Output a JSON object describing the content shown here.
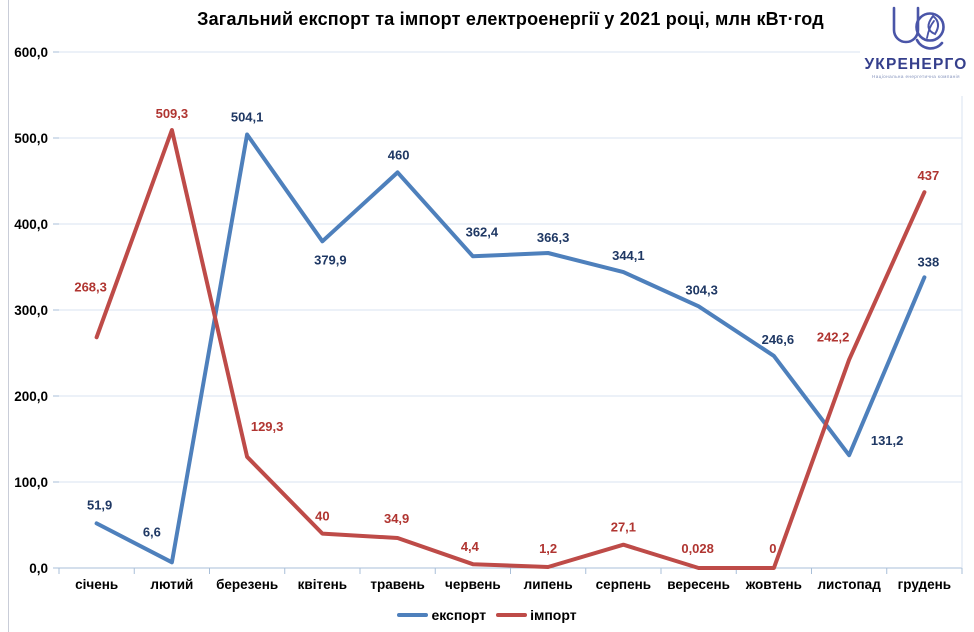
{
  "title": "Загальний експорт та імпорт електроенергії у 2021 році, млн кВт·год",
  "logo": {
    "name": "УКРЕНЕРГО",
    "tagline": "Національна енергетична компанія"
  },
  "colors": {
    "export_line": "#4e80bc",
    "import_line": "#be4b48",
    "export_label": "#1f3864",
    "import_label": "#b03531",
    "gridline": "#dae3f0",
    "axis": "#a9bfd8",
    "logo": "#4a55a8"
  },
  "chart_data": {
    "type": "line",
    "title": "Загальний експорт та імпорт електроенергії у 2021 році, млн кВт·год",
    "categories": [
      "січень",
      "лютий",
      "березень",
      "квітень",
      "травень",
      "червень",
      "липень",
      "серпень",
      "вересень",
      "жовтень",
      "листопад",
      "грудень"
    ],
    "series": [
      {
        "name": "експорт",
        "color": "#4e80bc",
        "label_color": "#1f3864",
        "values": [
          51.9,
          6.6,
          504.1,
          379.9,
          460,
          362.4,
          366.3,
          344.1,
          304.3,
          246.6,
          131.2,
          338
        ],
        "labels": [
          "51,9",
          "6,6",
          "504,1",
          "379,9",
          "460",
          "362,4",
          "366,3",
          "344,1",
          "304,3",
          "246,6",
          "131,2",
          "338"
        ],
        "label_offsets": [
          [
            3,
            -14
          ],
          [
            -20,
            -26
          ],
          [
            0,
            -13
          ],
          [
            8,
            23
          ],
          [
            1,
            -13
          ],
          [
            9,
            -20
          ],
          [
            5,
            -11
          ],
          [
            5,
            -12
          ],
          [
            3,
            -12
          ],
          [
            4,
            -12
          ],
          [
            38,
            -10
          ],
          [
            4,
            -11
          ]
        ]
      },
      {
        "name": "імпорт",
        "color": "#be4b48",
        "label_color": "#b03531",
        "values": [
          268.3,
          509.3,
          129.3,
          40,
          34.9,
          4.4,
          1.2,
          27.1,
          0.028,
          0,
          242.2,
          437
        ],
        "labels": [
          "268,3",
          "509,3",
          "129,3",
          "40",
          "34,9",
          "4,4",
          "1,2",
          "27,1",
          "0,028",
          "0",
          "242,2",
          "437"
        ],
        "label_offsets": [
          [
            -6,
            -46
          ],
          [
            0,
            -12
          ],
          [
            20,
            -26
          ],
          [
            0,
            -13
          ],
          [
            -1,
            -15
          ],
          [
            -3,
            -13
          ],
          [
            0,
            -14
          ],
          [
            0,
            -13
          ],
          [
            -1,
            -15
          ],
          [
            -1,
            -15
          ],
          [
            -16,
            -18
          ],
          [
            4,
            -12
          ]
        ]
      }
    ],
    "ylim": [
      0,
      600
    ],
    "yticks": [
      {
        "value": 0,
        "label": "0,0"
      },
      {
        "value": 100,
        "label": "100,0"
      },
      {
        "value": 200,
        "label": "200,0"
      },
      {
        "value": 300,
        "label": "300,0"
      },
      {
        "value": 400,
        "label": "400,0"
      },
      {
        "value": 500,
        "label": "500,0"
      },
      {
        "value": 600,
        "label": "600,0"
      }
    ],
    "grid": "horizontal",
    "legend_position": "bottom"
  }
}
